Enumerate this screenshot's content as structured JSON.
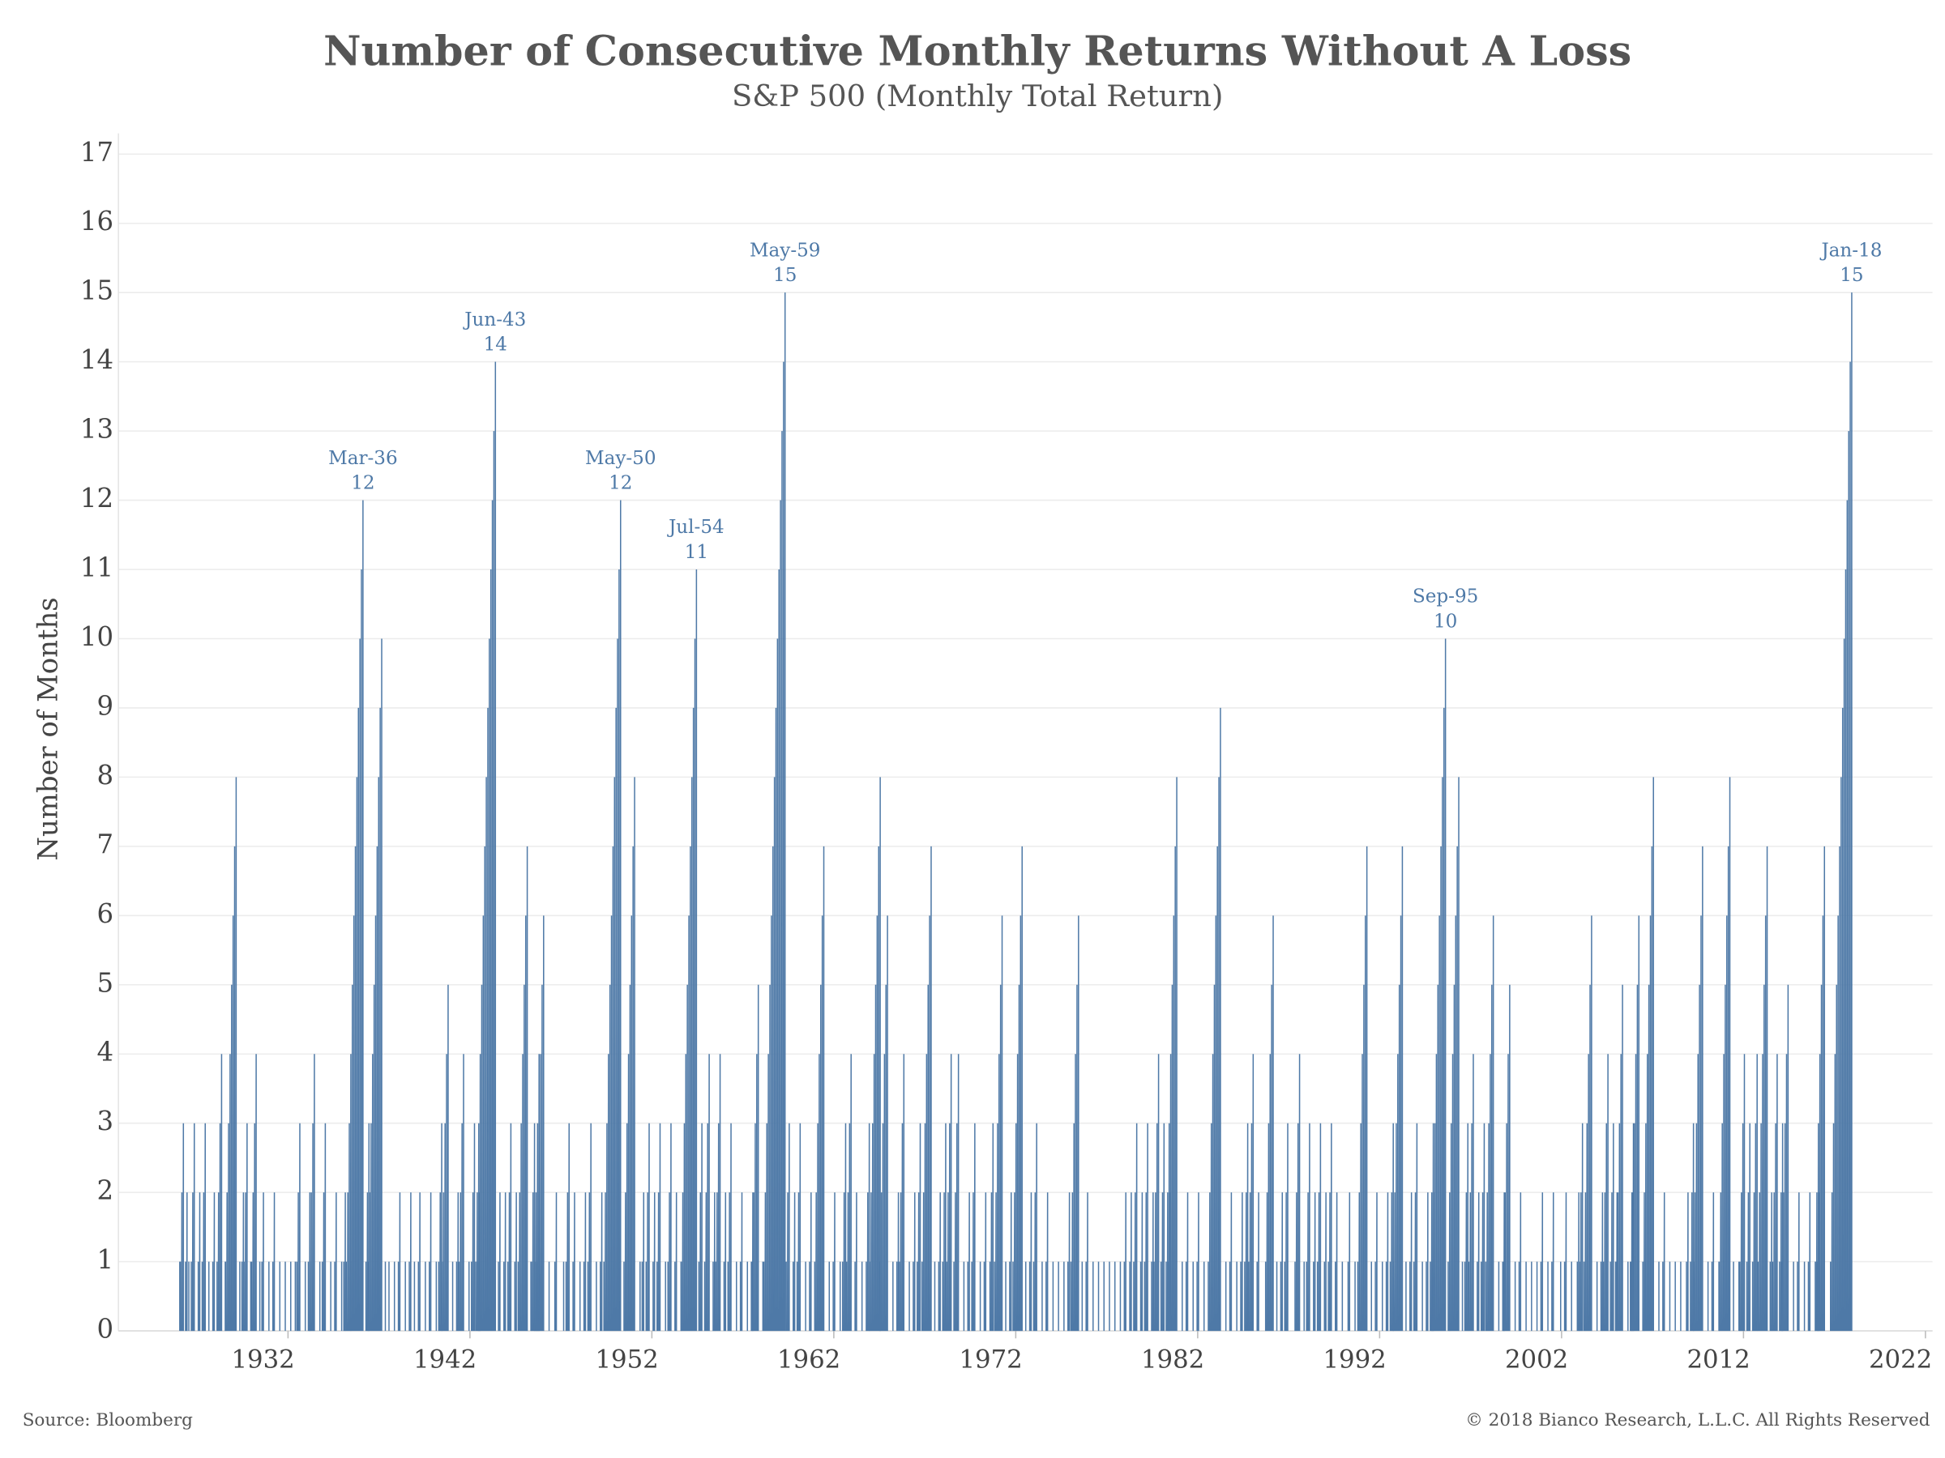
{
  "chart_data": {
    "type": "bar",
    "title": "Number of Consecutive Monthly Returns Without A Loss",
    "subtitle": "S&P 500 (Monthly Total Return)",
    "y_label": "Number of Months",
    "source": "Source: Bloomberg",
    "copyright": "© 2018 Bianco Research, L.L.C. All Rights Reserved",
    "color": "#4e79a7",
    "grid": true,
    "xlim": [
      1922.68,
      2022.39
    ],
    "xticks": [
      1932,
      1942,
      1952,
      1962,
      1972,
      1982,
      1992,
      2002,
      2012,
      2022
    ],
    "ylim": [
      0,
      17.3
    ],
    "yticks": [
      0,
      1,
      2,
      3,
      4,
      5,
      6,
      7,
      8,
      9,
      10,
      11,
      12,
      13,
      14,
      15,
      16,
      17
    ],
    "x": [
      1926.1,
      1926.3,
      1926.5,
      1926.6,
      1926.9,
      1927.2,
      1927.5,
      1927.7,
      1928.0,
      1928.4,
      1928.6,
      1929.2,
      1929.4,
      1929.6,
      1929.8,
      1930.0,
      1930.3,
      1930.5,
      1930.7,
      1931.0,
      1931.3,
      1931.6,
      1931.9,
      1932.2,
      1932.45,
      1932.7,
      1933.0,
      1933.25,
      1933.5,
      1933.8,
      1934.1,
      1934.4,
      1934.7,
      1935.0,
      1935.2,
      1935.5,
      1936.17,
      1936.5,
      1937.2,
      1937.4,
      1937.6,
      1937.9,
      1938.2,
      1938.5,
      1938.8,
      1939.0,
      1939.3,
      1939.6,
      1939.9,
      1940.2,
      1940.5,
      1940.85,
      1941.1,
      1941.4,
      1941.7,
      1942.0,
      1942.3,
      1942.6,
      1943.45,
      1943.7,
      1944.0,
      1944.3,
      1944.6,
      1945.2,
      1945.4,
      1945.6,
      1945.85,
      1946.1,
      1946.4,
      1946.8,
      1947.2,
      1947.5,
      1947.8,
      1948.1,
      1948.4,
      1948.7,
      1949.0,
      1949.3,
      1950.33,
      1950.6,
      1951.1,
      1951.4,
      1951.6,
      1951.9,
      1952.2,
      1952.5,
      1952.8,
      1953.1,
      1953.4,
      1953.65,
      1954.5,
      1954.8,
      1955.2,
      1955.5,
      1955.8,
      1956.1,
      1956.4,
      1956.7,
      1957.0,
      1957.3,
      1957.6,
      1957.9,
      1958.15,
      1959.37,
      1959.6,
      1959.9,
      1960.2,
      1960.5,
      1960.8,
      1961.5,
      1961.8,
      1962.1,
      1962.4,
      1962.7,
      1963.0,
      1963.3,
      1963.6,
      1964.0,
      1964.6,
      1965.0,
      1965.3,
      1965.6,
      1965.9,
      1966.2,
      1966.5,
      1966.8,
      1967.4,
      1967.6,
      1967.9,
      1968.2,
      1968.5,
      1968.9,
      1969.2,
      1969.5,
      1969.8,
      1970.1,
      1970.4,
      1970.8,
      1971.3,
      1971.5,
      1971.8,
      1972.4,
      1972.6,
      1972.9,
      1973.2,
      1973.5,
      1973.8,
      1974.1,
      1974.4,
      1974.7,
      1975.0,
      1975.5,
      1975.7,
      1976.0,
      1976.3,
      1976.6,
      1976.9,
      1977.2,
      1977.5,
      1977.8,
      1978.1,
      1978.4,
      1978.7,
      1979.0,
      1979.3,
      1979.6,
      1979.9,
      1980.2,
      1980.5,
      1980.9,
      1981.2,
      1981.5,
      1981.8,
      1982.1,
      1982.4,
      1983.3,
      1983.6,
      1983.9,
      1984.2,
      1984.5,
      1984.8,
      1985.1,
      1985.4,
      1986.2,
      1986.4,
      1986.7,
      1987.0,
      1987.65,
      1987.9,
      1988.2,
      1988.5,
      1988.8,
      1989.1,
      1989.4,
      1989.7,
      1990.0,
      1990.4,
      1990.7,
      1991.35,
      1991.6,
      1991.9,
      1992.2,
      1992.5,
      1992.8,
      1993.3,
      1993.5,
      1993.8,
      1994.1,
      1994.4,
      1994.7,
      1995.0,
      1995.67,
      1995.9,
      1996.4,
      1996.6,
      1996.9,
      1997.2,
      1997.5,
      1997.8,
      1998.3,
      1998.6,
      1998.9,
      1999.2,
      1999.5,
      1999.8,
      2000.1,
      2000.4,
      2000.7,
      2001.0,
      2001.3,
      2001.6,
      2002.0,
      2002.3,
      2002.6,
      2003.0,
      2003.2,
      2003.7,
      2004.0,
      2004.3,
      2004.6,
      2004.9,
      2005.1,
      2005.4,
      2005.7,
      2006.0,
      2006.3,
      2006.6,
      2007.1,
      2007.4,
      2007.7,
      2008.0,
      2008.3,
      2008.6,
      2009.0,
      2009.3,
      2009.8,
      2010.1,
      2010.4,
      2010.7,
      2011.3,
      2011.5,
      2011.8,
      2012.1,
      2012.4,
      2012.8,
      2013.35,
      2013.6,
      2013.9,
      2014.2,
      2014.5,
      2014.8,
      2015.1,
      2015.4,
      2015.7,
      2016.0,
      2016.2,
      2016.5,
      2018.0
    ],
    "values": [
      1,
      3,
      2,
      1,
      3,
      2,
      3,
      1,
      2,
      4,
      1,
      8,
      1,
      2,
      3,
      1,
      4,
      1,
      2,
      1,
      2,
      1,
      1,
      1,
      1,
      3,
      1,
      2,
      4,
      1,
      3,
      1,
      2,
      1,
      2,
      1,
      12,
      3,
      10,
      1,
      1,
      1,
      2,
      1,
      2,
      1,
      2,
      1,
      2,
      1,
      3,
      5,
      1,
      2,
      4,
      1,
      3,
      2,
      14,
      2,
      2,
      3,
      2,
      7,
      1,
      3,
      4,
      6,
      1,
      2,
      1,
      3,
      2,
      1,
      2,
      3,
      1,
      2,
      12,
      1,
      8,
      1,
      2,
      3,
      2,
      3,
      1,
      3,
      2,
      1,
      11,
      3,
      4,
      2,
      4,
      2,
      3,
      1,
      2,
      1,
      2,
      5,
      1,
      15,
      3,
      2,
      3,
      1,
      2,
      7,
      1,
      2,
      1,
      3,
      4,
      2,
      1,
      3,
      8,
      6,
      1,
      2,
      4,
      1,
      2,
      3,
      7,
      1,
      2,
      3,
      4,
      4,
      1,
      2,
      3,
      1,
      2,
      3,
      6,
      1,
      2,
      7,
      1,
      2,
      3,
      1,
      2,
      1,
      1,
      1,
      2,
      6,
      1,
      2,
      1,
      1,
      1,
      1,
      1,
      1,
      2,
      2,
      3,
      2,
      3,
      2,
      4,
      3,
      2,
      8,
      1,
      2,
      1,
      2,
      1,
      9,
      1,
      2,
      1,
      2,
      3,
      4,
      2,
      6,
      1,
      2,
      3,
      4,
      1,
      3,
      2,
      3,
      2,
      3,
      2,
      1,
      2,
      1,
      7,
      1,
      2,
      1,
      2,
      3,
      7,
      1,
      2,
      3,
      1,
      2,
      3,
      10,
      1,
      8,
      1,
      3,
      4,
      2,
      3,
      6,
      1,
      2,
      5,
      1,
      2,
      1,
      1,
      1,
      2,
      1,
      2,
      1,
      2,
      1,
      2,
      3,
      6,
      1,
      2,
      4,
      3,
      2,
      5,
      1,
      3,
      6,
      1,
      8,
      1,
      2,
      1,
      1,
      1,
      2,
      3,
      7,
      1,
      2,
      1,
      8,
      1,
      1,
      4,
      3,
      4,
      7,
      2,
      4,
      3,
      5,
      1,
      2,
      1,
      2,
      1,
      2,
      7,
      15
    ],
    "annotations": [
      {
        "label": "Mar-36",
        "value": 12,
        "x": 1936.17
      },
      {
        "label": "Jun-43",
        "value": 14,
        "x": 1943.45
      },
      {
        "label": "May-50",
        "value": 12,
        "x": 1950.33
      },
      {
        "label": "Jul-54",
        "value": 11,
        "x": 1954.5
      },
      {
        "label": "May-59",
        "value": 15,
        "x": 1959.37
      },
      {
        "label": "Sep-95",
        "value": 10,
        "x": 1995.67
      },
      {
        "label": "Jan-18",
        "value": 15,
        "x": 2018.0
      }
    ]
  }
}
